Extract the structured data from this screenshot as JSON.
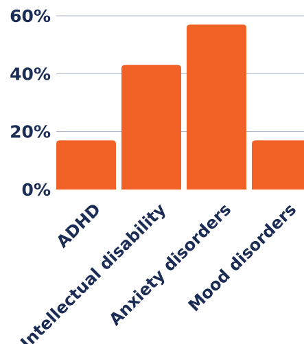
{
  "chart_data": {
    "type": "bar",
    "categories": [
      "ADHD",
      "Intellectual disability",
      "Anxiety disorders",
      "Mood disorders"
    ],
    "values": [
      17,
      43,
      57,
      17
    ],
    "ylim": [
      0,
      60
    ],
    "yticks": [
      0,
      20,
      40,
      60
    ],
    "ytick_labels": [
      "0%",
      "20%",
      "40%",
      "60%"
    ],
    "grid": true,
    "legend": "none",
    "title": "",
    "xlabel": "",
    "ylabel": ""
  },
  "colors": {
    "bar": "#f26125",
    "text": "#1c2d55",
    "grid": "#a8afc2"
  }
}
